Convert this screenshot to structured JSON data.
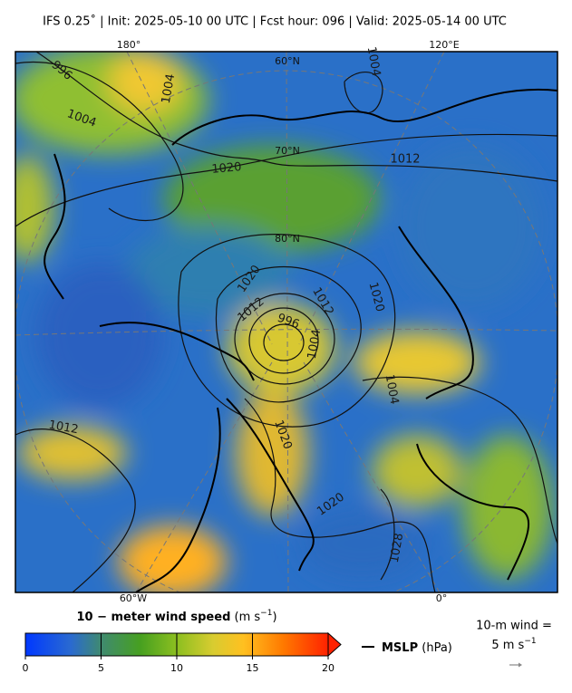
{
  "header": {
    "title": "IFS 0.25˚  |  Init: 2025-05-10 00 UTC  |  Fcst hour: 096  |  Valid: 2025-05-14 00 UTC"
  },
  "map": {
    "lon_labels": [
      "180°",
      "120°E",
      "60°W",
      "0°"
    ],
    "lat_labels": [
      "60°N",
      "70°N",
      "80°N"
    ],
    "contour_labels": [
      "996",
      "1004",
      "1004",
      "1020",
      "1012",
      "1020",
      "1012",
      "996",
      "1012",
      "1004",
      "1020",
      "1004",
      "1020",
      "1012",
      "1020",
      "1028",
      "1004"
    ]
  },
  "colorbar": {
    "label_bold": "10 − meter wind speed",
    "label_unit_open": "(m s",
    "label_exp": "−1",
    "label_unit_close": ")",
    "ticks": [
      0,
      5,
      10,
      15,
      20
    ]
  },
  "legend": {
    "bold": "MSLP",
    "unit": "(hPa)"
  },
  "wind_key": {
    "line1": "10-m wind =",
    "line2": "5 m s",
    "exp": "−1"
  }
}
